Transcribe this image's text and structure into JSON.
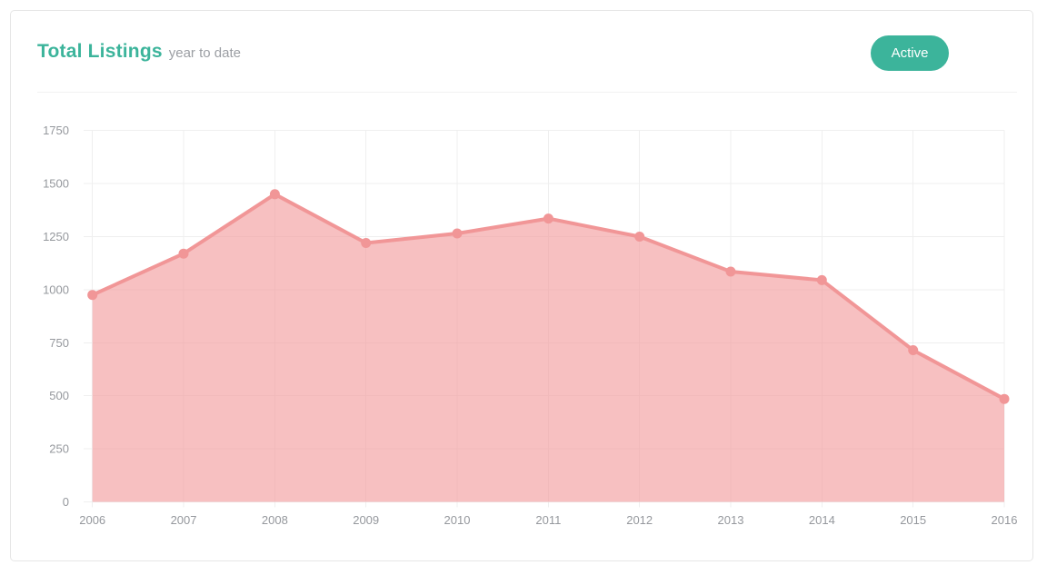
{
  "header": {
    "title": "Total Listings",
    "subtitle": "year to date",
    "button_label": "Active"
  },
  "colors": {
    "accent_teal": "#3CB49B",
    "button_text": "#FFFFFF",
    "series_line": "#F19697",
    "series_fill": "rgba(241,150,151,0.6)",
    "gridline": "#EFEFEF",
    "axis_label": "#95989D",
    "card_border": "#E6E6E6",
    "divider": "#F1F1F1"
  },
  "chart_data": {
    "type": "area",
    "title": "Total Listings",
    "subtitle": "year to date",
    "x": [
      "2006",
      "2007",
      "2008",
      "2009",
      "2010",
      "2011",
      "2012",
      "2013",
      "2014",
      "2015",
      "2016"
    ],
    "series": [
      {
        "name": "Total Listings",
        "values": [
          975,
          1170,
          1450,
          1220,
          1265,
          1335,
          1250,
          1085,
          1045,
          715,
          485
        ]
      }
    ],
    "xlabel": "",
    "ylabel": "",
    "ylim": [
      0,
      1750
    ],
    "yticks": [
      0,
      250,
      500,
      750,
      1000,
      1250,
      1500,
      1750
    ],
    "grid": true,
    "legend": "none",
    "markers": true
  }
}
